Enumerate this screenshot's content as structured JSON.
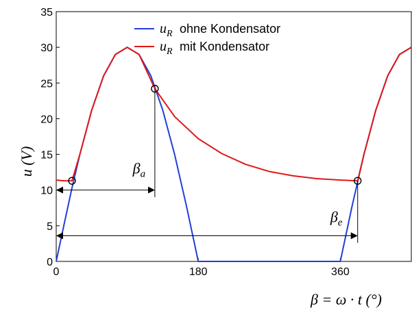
{
  "chart_data": {
    "type": "line",
    "title": "",
    "ylabel": "u (V)",
    "xlabel": "β = ω · t (°)",
    "xlim": [
      0,
      450
    ],
    "ylim": [
      0,
      35
    ],
    "x_ticks": [
      0,
      180,
      360
    ],
    "y_ticks": [
      0,
      5,
      10,
      15,
      20,
      25,
      30,
      35
    ],
    "grid": false,
    "legend_position": "top-right",
    "series": [
      {
        "name": "u_R ohne Kondensator",
        "legend_symbol": "u",
        "legend_sub": "R",
        "legend_text": "ohne Kondensator",
        "color": "#1f3fd8",
        "x": [
          0,
          10,
          20,
          30,
          45,
          60,
          75,
          90,
          105,
          120,
          135,
          150,
          165,
          180,
          270,
          360,
          375,
          390,
          405,
          420,
          435,
          450
        ],
        "y": [
          0,
          5.2,
          10.3,
          15,
          21.2,
          26,
          29,
          30,
          29,
          26,
          21.2,
          15,
          7.8,
          0,
          0,
          0,
          7.8,
          15,
          21.2,
          26,
          29,
          30
        ]
      },
      {
        "name": "u_R mit Kondensator",
        "legend_symbol": "u",
        "legend_sub": "R",
        "legend_text": "mit Kondensator",
        "color": "#e01818",
        "x": [
          0,
          10,
          20,
          30,
          45,
          60,
          75,
          90,
          105,
          125,
          150,
          180,
          210,
          240,
          270,
          300,
          330,
          360,
          382,
          390,
          405,
          420,
          435,
          450
        ],
        "y": [
          11.4,
          11.3,
          11.3,
          15,
          21.2,
          26,
          29,
          30,
          29,
          24.2,
          20.3,
          17.2,
          15.1,
          13.6,
          12.6,
          12,
          11.6,
          11.4,
          11.3,
          15,
          21.2,
          26,
          29,
          30
        ]
      }
    ],
    "markers": [
      {
        "x": 20,
        "y": 11.3
      },
      {
        "x": 125,
        "y": 24.2
      },
      {
        "x": 382,
        "y": 11.3
      }
    ],
    "annotations": [
      {
        "symbol": "β",
        "sub": "a",
        "x_from": 0,
        "x_to": 125,
        "y": 10,
        "label_x": 105,
        "label_y": 12.3
      },
      {
        "symbol": "β",
        "sub": "e",
        "x_from": 0,
        "x_to": 382,
        "y": 3.6,
        "label_x": 355,
        "label_y": 5.5
      }
    ]
  }
}
